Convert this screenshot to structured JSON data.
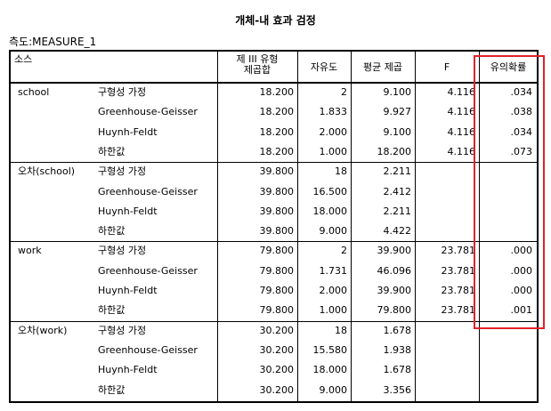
{
  "title": "개체-내 효과 검정",
  "measure_label": "측도:MEASURE_1",
  "headers": {
    "source": "소스",
    "ss_line1": "제 III 유형",
    "ss_line2": "제곱합",
    "df": "자유도",
    "ms": "평균 제곱",
    "f": "F",
    "sig": "유의확률"
  },
  "groups": [
    {
      "source": "school",
      "rows": [
        {
          "method": "구형성 가정",
          "ss": "18.200",
          "df": "2",
          "ms": "9.100",
          "f": "4.116",
          "sig": ".034"
        },
        {
          "method": "Greenhouse-Geisser",
          "ss": "18.200",
          "df": "1.833",
          "ms": "9.927",
          "f": "4.116",
          "sig": ".038"
        },
        {
          "method": "Huynh-Feldt",
          "ss": "18.200",
          "df": "2.000",
          "ms": "9.100",
          "f": "4.116",
          "sig": ".034"
        },
        {
          "method": "하한값",
          "ss": "18.200",
          "df": "1.000",
          "ms": "18.200",
          "f": "4.116",
          "sig": ".073"
        }
      ]
    },
    {
      "source": "오차(school)",
      "rows": [
        {
          "method": "구형성 가정",
          "ss": "39.800",
          "df": "18",
          "ms": "2.211",
          "f": "",
          "sig": ""
        },
        {
          "method": "Greenhouse-Geisser",
          "ss": "39.800",
          "df": "16.500",
          "ms": "2.412",
          "f": "",
          "sig": ""
        },
        {
          "method": "Huynh-Feldt",
          "ss": "39.800",
          "df": "18.000",
          "ms": "2.211",
          "f": "",
          "sig": ""
        },
        {
          "method": "하한값",
          "ss": "39.800",
          "df": "9.000",
          "ms": "4.422",
          "f": "",
          "sig": ""
        }
      ]
    },
    {
      "source": "work",
      "rows": [
        {
          "method": "구형성 가정",
          "ss": "79.800",
          "df": "2",
          "ms": "39.900",
          "f": "23.781",
          "sig": ".000"
        },
        {
          "method": "Greenhouse-Geisser",
          "ss": "79.800",
          "df": "1.731",
          "ms": "46.096",
          "f": "23.781",
          "sig": ".000"
        },
        {
          "method": "Huynh-Feldt",
          "ss": "79.800",
          "df": "2.000",
          "ms": "39.900",
          "f": "23.781",
          "sig": ".000"
        },
        {
          "method": "하한값",
          "ss": "79.800",
          "df": "1.000",
          "ms": "79.800",
          "f": "23.781",
          "sig": ".001"
        }
      ]
    },
    {
      "source": "오차(work)",
      "rows": [
        {
          "method": "구형성 가정",
          "ss": "30.200",
          "df": "18",
          "ms": "1.678",
          "f": "",
          "sig": ""
        },
        {
          "method": "Greenhouse-Geisser",
          "ss": "30.200",
          "df": "15.580",
          "ms": "1.938",
          "f": "",
          "sig": ""
        },
        {
          "method": "Huynh-Feldt",
          "ss": "30.200",
          "df": "18.000",
          "ms": "1.678",
          "f": "",
          "sig": ""
        },
        {
          "method": "하한값",
          "ss": "30.200",
          "df": "9.000",
          "ms": "3.356",
          "f": "",
          "sig": ""
        }
      ]
    }
  ],
  "highlight_color": "#e0212b"
}
